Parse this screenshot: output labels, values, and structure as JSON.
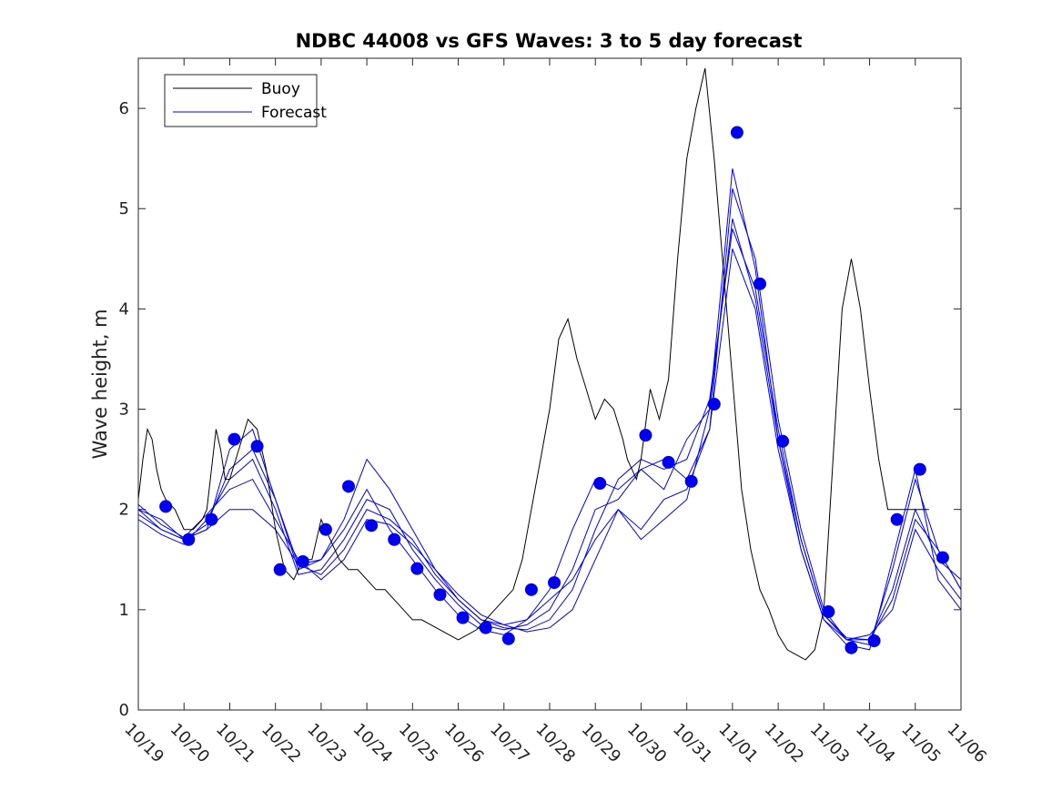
{
  "chart_data": {
    "type": "line",
    "title": "NDBC 44008 vs GFS Waves: 3 to 5 day forecast",
    "xlabel": "",
    "ylabel": "Wave height, m",
    "xlim": [
      0,
      18
    ],
    "ylim": [
      0,
      6.5
    ],
    "grid": false,
    "legend_location": "top-left",
    "x_tick_values": [
      0,
      1,
      2,
      3,
      4,
      5,
      6,
      7,
      8,
      9,
      10,
      11,
      12,
      13,
      14,
      15,
      16,
      17,
      18
    ],
    "x_tick_labels": [
      "10/19",
      "10/20",
      "10/21",
      "10/22",
      "10/23",
      "10/24",
      "10/25",
      "10/26",
      "10/27",
      "10/28",
      "10/29",
      "10/30",
      "10/31",
      "11/01",
      "11/02",
      "11/03",
      "11/04",
      "11/05",
      "11/06"
    ],
    "y_tick_values": [
      0,
      1,
      2,
      3,
      4,
      5,
      6
    ],
    "y_tick_labels": [
      "0",
      "1",
      "2",
      "3",
      "4",
      "5",
      "6"
    ],
    "series": [
      {
        "name": "Buoy",
        "color": "#000000",
        "x": [
          0,
          0.1,
          0.2,
          0.3,
          0.4,
          0.5,
          0.6,
          0.8,
          1.0,
          1.2,
          1.4,
          1.5,
          1.6,
          1.7,
          1.8,
          1.9,
          2.0,
          2.2,
          2.4,
          2.6,
          2.8,
          3.0,
          3.2,
          3.4,
          3.6,
          3.8,
          4.0,
          4.2,
          4.4,
          4.6,
          4.8,
          5.0,
          5.2,
          5.4,
          5.6,
          5.8,
          6.0,
          6.2,
          6.4,
          6.6,
          6.8,
          7.0,
          7.2,
          7.4,
          7.6,
          7.8,
          8.0,
          8.2,
          8.4,
          8.6,
          8.8,
          9.0,
          9.2,
          9.4,
          9.6,
          9.8,
          10.0,
          10.2,
          10.4,
          10.6,
          10.7,
          10.8,
          10.9,
          11.0,
          11.2,
          11.4,
          11.6,
          11.8,
          12.0,
          12.2,
          12.4,
          12.6,
          12.8,
          13.0,
          13.2,
          13.3,
          13.4,
          13.5,
          13.6,
          13.8,
          14.0,
          14.2,
          14.4,
          14.6,
          14.8,
          15.0,
          15.2,
          15.4,
          15.6,
          15.8,
          16.0,
          16.2,
          16.4,
          16.6,
          16.8,
          16.9,
          17.0,
          17.1,
          17.2,
          17.3
        ],
        "y": [
          2.1,
          2.5,
          2.8,
          2.7,
          2.4,
          2.2,
          2.1,
          2.0,
          1.8,
          1.8,
          1.9,
          2.0,
          2.4,
          2.8,
          2.6,
          2.3,
          2.3,
          2.6,
          2.9,
          2.8,
          2.4,
          1.8,
          1.4,
          1.3,
          1.5,
          1.5,
          1.9,
          1.7,
          1.5,
          1.4,
          1.4,
          1.3,
          1.2,
          1.2,
          1.1,
          1.0,
          0.9,
          0.9,
          0.85,
          0.8,
          0.75,
          0.7,
          0.75,
          0.8,
          0.9,
          1.0,
          1.1,
          1.2,
          1.5,
          2.0,
          2.5,
          3.0,
          3.7,
          3.9,
          3.5,
          3.2,
          2.9,
          3.1,
          3.0,
          2.7,
          2.5,
          2.4,
          2.3,
          2.5,
          3.2,
          2.9,
          3.3,
          4.5,
          5.5,
          6.0,
          6.4,
          5.5,
          4.4,
          3.3,
          2.2,
          1.9,
          1.6,
          1.4,
          1.2,
          1.0,
          0.75,
          0.6,
          0.55,
          0.5,
          0.6,
          1.0,
          2.5,
          4.0,
          4.5,
          4.0,
          3.2,
          2.5,
          2.0,
          2.0,
          2.0,
          2.0,
          2.0,
          2.0,
          2.0,
          2.0
        ]
      },
      {
        "name": "Forecast",
        "color": "#0000ee",
        "runs": [
          {
            "x": [
              0,
              0.5,
              1,
              1.5,
              2,
              2.5,
              3,
              3.5,
              4,
              4.5,
              5,
              5.5,
              6,
              6.5,
              7,
              7.5,
              8,
              8.5,
              9,
              9.5,
              10,
              10.5,
              11,
              11.5,
              12,
              12.5,
              13,
              13.5,
              14,
              14.5,
              15,
              15.5,
              16,
              16.5,
              17,
              17.5,
              18
            ],
            "y": [
              2.0,
              1.9,
              1.7,
              1.8,
              2.6,
              2.8,
              2.1,
              1.4,
              1.5,
              1.8,
              2.2,
              1.8,
              1.5,
              1.2,
              0.95,
              0.8,
              0.75,
              0.9,
              1.2,
              1.8,
              2.3,
              2.2,
              2.4,
              2.2,
              2.7,
              3.0,
              5.4,
              4.4,
              2.7,
              1.6,
              0.9,
              0.65,
              0.6,
              1.5,
              2.4,
              1.3,
              1.0
            ]
          },
          {
            "x": [
              0,
              0.5,
              1,
              1.5,
              2,
              2.5,
              3,
              3.5,
              4,
              4.5,
              5,
              5.5,
              6,
              6.5,
              7,
              7.5,
              8,
              8.5,
              9,
              9.5,
              10,
              10.5,
              11,
              11.5,
              12,
              12.5,
              13,
              13.5,
              14,
              14.5,
              15,
              15.5,
              16,
              16.5,
              17,
              17.5,
              18
            ],
            "y": [
              1.9,
              1.75,
              1.65,
              1.9,
              2.3,
              2.5,
              2.0,
              1.35,
              1.4,
              1.7,
              2.1,
              2.0,
              1.6,
              1.3,
              1.05,
              0.85,
              0.8,
              0.85,
              1.0,
              1.4,
              2.0,
              2.1,
              2.4,
              2.5,
              2.3,
              2.8,
              5.2,
              4.5,
              2.9,
              1.8,
              1.0,
              0.7,
              0.65,
              1.4,
              2.3,
              1.6,
              1.2
            ]
          },
          {
            "x": [
              0,
              0.5,
              1,
              1.5,
              2,
              2.5,
              3,
              3.5,
              4,
              4.5,
              5,
              5.5,
              6,
              6.5,
              7,
              7.5,
              8,
              8.5,
              9,
              9.5,
              10,
              10.5,
              11,
              11.5,
              12,
              12.5,
              13,
              13.5,
              14,
              14.5,
              15,
              15.5,
              16,
              16.5,
              17,
              17.5,
              18
            ],
            "y": [
              1.95,
              1.8,
              1.7,
              1.85,
              2.4,
              2.6,
              2.1,
              1.45,
              1.35,
              1.6,
              2.0,
              1.9,
              1.7,
              1.35,
              1.1,
              0.9,
              0.82,
              0.8,
              0.9,
              1.2,
              1.8,
              2.3,
              2.5,
              2.4,
              2.5,
              3.1,
              4.8,
              4.2,
              2.8,
              1.7,
              0.95,
              0.72,
              0.7,
              1.2,
              2.0,
              1.5,
              1.3
            ]
          },
          {
            "x": [
              0,
              0.5,
              1,
              1.5,
              2,
              2.5,
              3,
              3.5,
              4,
              4.5,
              5,
              5.5,
              6,
              6.5,
              7,
              7.5,
              8,
              8.5,
              9,
              9.5,
              10,
              10.5,
              11,
              11.5,
              12,
              12.5,
              13,
              13.5,
              14,
              14.5,
              15,
              15.5,
              16,
              16.5,
              17,
              17.5,
              18
            ],
            "y": [
              2.05,
              1.85,
              1.72,
              1.95,
              2.2,
              2.3,
              1.9,
              1.5,
              1.3,
              1.5,
              1.9,
              1.85,
              1.65,
              1.4,
              1.15,
              0.95,
              0.85,
              0.78,
              0.82,
              1.0,
              1.5,
              2.0,
              1.8,
              2.1,
              2.2,
              2.8,
              4.6,
              4.0,
              2.6,
              1.6,
              0.9,
              0.7,
              0.75,
              1.0,
              1.8,
              1.4,
              1.1
            ]
          },
          {
            "x": [
              0,
              0.5,
              1,
              1.5,
              2,
              2.5,
              3,
              3.5,
              4,
              4.5,
              5,
              5.5,
              6,
              6.5,
              7,
              7.5,
              8,
              8.5,
              9,
              9.5,
              10,
              10.5,
              11,
              11.5,
              12,
              12.5,
              13,
              13.5,
              14,
              14.5,
              15,
              15.5,
              16,
              16.5,
              17,
              17.5,
              18
            ],
            "y": [
              2.0,
              1.8,
              1.7,
              1.8,
              2.0,
              2.0,
              1.8,
              1.45,
              1.5,
              1.9,
              2.5,
              2.2,
              1.8,
              1.4,
              1.1,
              0.9,
              0.85,
              0.9,
              1.1,
              1.3,
              1.7,
              2.0,
              1.7,
              1.9,
              2.1,
              3.0,
              4.9,
              4.1,
              2.7,
              1.7,
              0.95,
              0.7,
              0.7,
              1.1,
              1.9,
              1.6,
              1.2
            ]
          }
        ],
        "markers": [
          {
            "x": 0.6,
            "y": 2.03
          },
          {
            "x": 1.1,
            "y": 1.7
          },
          {
            "x": 1.6,
            "y": 1.9
          },
          {
            "x": 2.1,
            "y": 2.7
          },
          {
            "x": 2.6,
            "y": 2.63
          },
          {
            "x": 3.1,
            "y": 1.4
          },
          {
            "x": 3.6,
            "y": 1.48
          },
          {
            "x": 4.1,
            "y": 1.8
          },
          {
            "x": 4.6,
            "y": 2.23
          },
          {
            "x": 5.1,
            "y": 1.84
          },
          {
            "x": 5.6,
            "y": 1.7
          },
          {
            "x": 6.1,
            "y": 1.41
          },
          {
            "x": 6.6,
            "y": 1.15
          },
          {
            "x": 7.1,
            "y": 0.92
          },
          {
            "x": 7.6,
            "y": 0.82
          },
          {
            "x": 8.1,
            "y": 0.71
          },
          {
            "x": 8.6,
            "y": 1.2
          },
          {
            "x": 9.1,
            "y": 1.27
          },
          {
            "x": 10.1,
            "y": 2.26
          },
          {
            "x": 11.1,
            "y": 2.74
          },
          {
            "x": 11.6,
            "y": 2.47
          },
          {
            "x": 12.1,
            "y": 2.28
          },
          {
            "x": 12.6,
            "y": 3.05
          },
          {
            "x": 13.1,
            "y": 5.76
          },
          {
            "x": 13.6,
            "y": 4.25
          },
          {
            "x": 14.1,
            "y": 2.68
          },
          {
            "x": 15.1,
            "y": 0.98
          },
          {
            "x": 15.6,
            "y": 0.62
          },
          {
            "x": 16.1,
            "y": 0.69
          },
          {
            "x": 16.6,
            "y": 1.9
          },
          {
            "x": 17.1,
            "y": 2.4
          },
          {
            "x": 17.6,
            "y": 1.52
          }
        ]
      }
    ]
  }
}
